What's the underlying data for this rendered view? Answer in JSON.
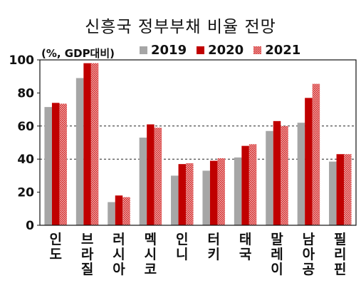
{
  "chart_data": {
    "type": "bar",
    "title": "신흥국 정부부채 비율 전망",
    "unit_label": "(%, GDP대비)",
    "categories": [
      "인도",
      "브라질",
      "러시아",
      "멕시코",
      "인니",
      "터키",
      "태국",
      "말레이",
      "남아공",
      "필리핀"
    ],
    "series": [
      {
        "name": "2019",
        "values": [
          71.5,
          89,
          14,
          53,
          30,
          33,
          41,
          57,
          62,
          38.5
        ]
      },
      {
        "name": "2020",
        "values": [
          74,
          98,
          18,
          61,
          37,
          39,
          48,
          63,
          77,
          43
        ]
      },
      {
        "name": "2021",
        "values": [
          73.5,
          98,
          17,
          59,
          37.5,
          40.5,
          49,
          60,
          85.5,
          43
        ]
      }
    ],
    "colors": {
      "2019": "#a6a6a6",
      "2020": "#c00000",
      "2021": "#e04c4c"
    },
    "ylim": [
      0,
      100
    ],
    "yticks": [
      0,
      20,
      40,
      60,
      80,
      100
    ],
    "dashed_gridlines": [
      40,
      60
    ],
    "grid": false,
    "legend_position": "top"
  }
}
